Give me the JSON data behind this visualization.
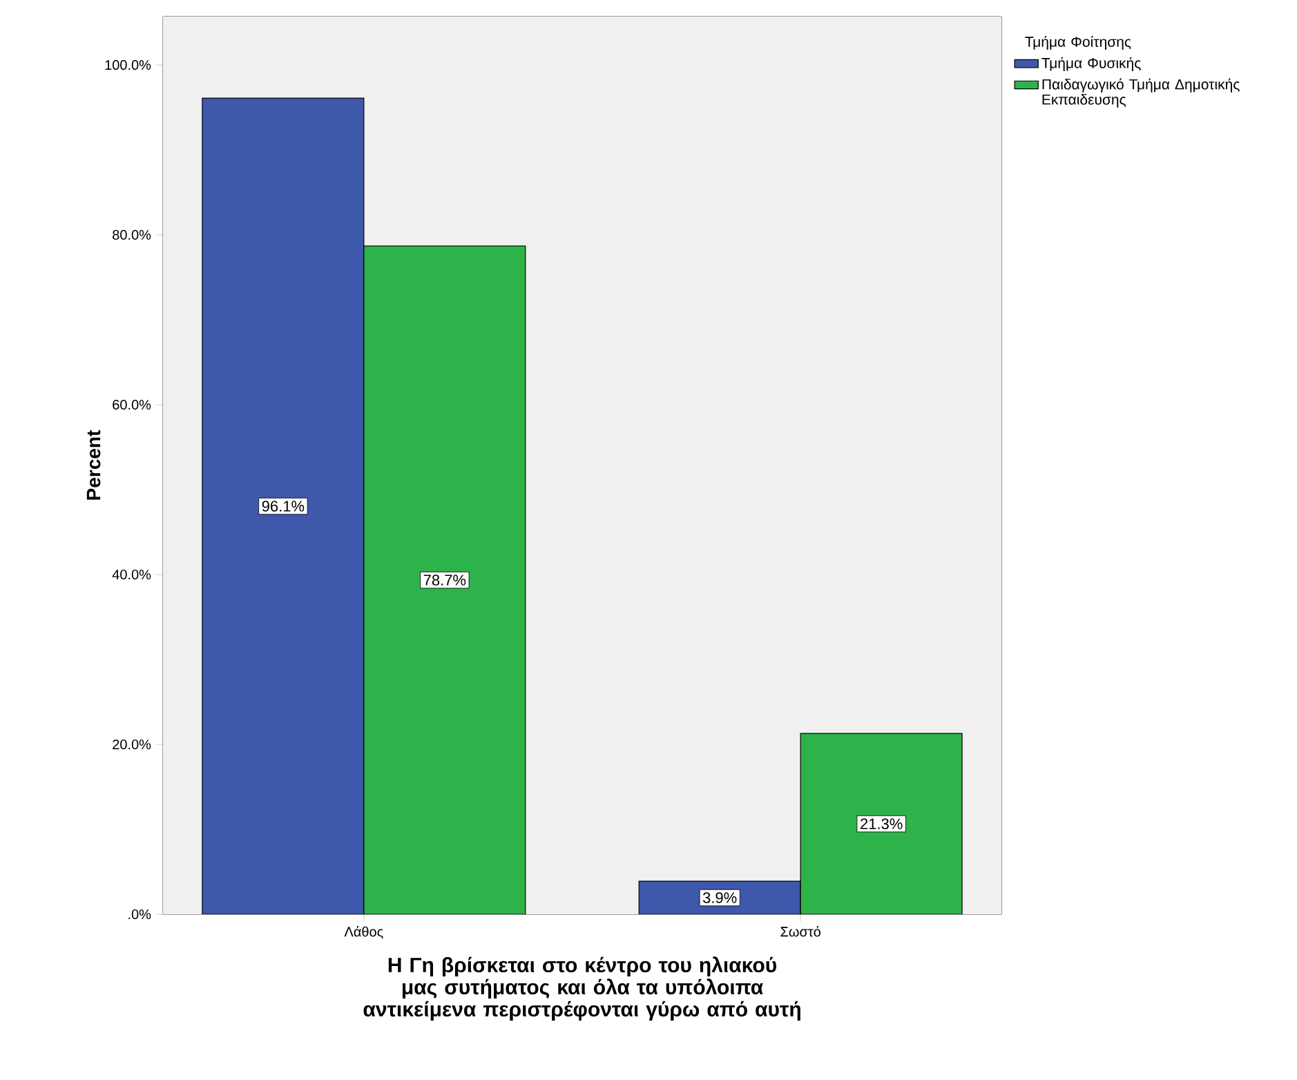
{
  "chart_data": {
    "type": "bar",
    "xlabel": "Η Γη βρίσκεται στο κέντρο του ηλιακού μας συτήματος και όλα τα υπόλοιπα αντικείμενα περιστρέφονται γύρω από αυτή",
    "ylabel": "Percent",
    "legend_title": "Τμήμα Φοίτησης",
    "legend": "top right",
    "categories": [
      "Λάθος",
      "Σωστό"
    ],
    "series": [
      {
        "name": "Τμήμα Φυσικής",
        "color": "#3e58ab",
        "values": [
          96.1,
          3.9
        ],
        "value_labels": [
          "96.1%",
          "3.9%"
        ]
      },
      {
        "name": "Παιδαγωγικό Τμήμα Δημοτικής Εκπαιδευσης",
        "color": "#2db34a",
        "values": [
          78.7,
          21.3
        ],
        "value_labels": [
          "78.7%",
          "21.3%"
        ]
      }
    ],
    "ylim": [
      0,
      105.7
    ],
    "yticks": [
      {
        "value": 0,
        "label": ".0%"
      },
      {
        "value": 20,
        "label": "20.0%"
      },
      {
        "value": 40,
        "label": "40.0%"
      },
      {
        "value": 60,
        "label": "60.0%"
      },
      {
        "value": 80,
        "label": "80.0%"
      },
      {
        "value": 100,
        "label": "100.0%"
      }
    ]
  }
}
